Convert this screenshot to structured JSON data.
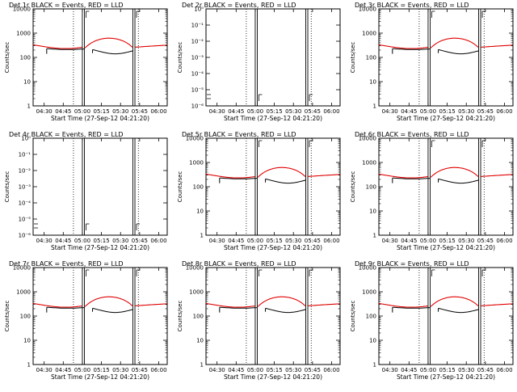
{
  "chart_data": [
    {
      "id": "det1",
      "type": "line",
      "title": "Det 1r BLACK = Events, RED = LLD",
      "ylabel": "Counts/sec",
      "xlabel": "Start Time (27-Sep-12 04:21:20)",
      "x_ticks": [
        "04:30",
        "04:45",
        "05:00",
        "05:15",
        "05:30",
        "05:45",
        "06:00"
      ],
      "y_scale": "log",
      "y_ticks": [
        "1",
        "10",
        "100",
        "1000",
        "10000"
      ],
      "ylim": [
        1,
        10000
      ],
      "has_data": true
    },
    {
      "id": "det2",
      "type": "line",
      "title": "Det 2r BLACK = Events, RED = LLD",
      "ylabel": "Counts/sec",
      "xlabel": "Start Time (27-Sep-12 04:21:20)",
      "x_ticks": [
        "04:30",
        "04:45",
        "05:00",
        "05:15",
        "05:30",
        "05:45",
        "06:00"
      ],
      "y_scale": "log",
      "y_ticks": [
        "10⁰",
        "10⁻¹",
        "10⁻²",
        "10⁻³",
        "10⁻⁴",
        "10⁻⁵",
        "10⁻⁶"
      ],
      "ylim": [
        1e-06,
        1
      ],
      "has_data": false
    },
    {
      "id": "det3",
      "type": "line",
      "title": "Det 3r BLACK = Events, RED = LLD",
      "ylabel": "Counts/sec",
      "xlabel": "Start Time (27-Sep-12 04:21:20)",
      "x_ticks": [
        "04:30",
        "04:45",
        "05:00",
        "05:15",
        "05:30",
        "05:45",
        "06:00"
      ],
      "y_scale": "log",
      "y_ticks": [
        "1",
        "10",
        "100",
        "1000",
        "10000"
      ],
      "ylim": [
        1,
        10000
      ],
      "has_data": true
    },
    {
      "id": "det4",
      "type": "line",
      "title": "Det 4r BLACK = Events, RED = LLD",
      "ylabel": "Counts/sec",
      "xlabel": "Start Time (27-Sep-12 04:21:20)",
      "x_ticks": [
        "04:30",
        "04:45",
        "05:00",
        "05:15",
        "05:30",
        "05:45",
        "06:00"
      ],
      "y_scale": "log",
      "y_ticks": [
        "10⁰",
        "10⁻¹",
        "10⁻²",
        "10⁻³",
        "10⁻⁴",
        "10⁻⁵",
        "10⁻⁶"
      ],
      "ylim": [
        1e-06,
        1
      ],
      "has_data": false
    },
    {
      "id": "det5",
      "type": "line",
      "title": "Det 5r BLACK = Events, RED = LLD",
      "ylabel": "Counts/sec",
      "xlabel": "Start Time (27-Sep-12 04:21:20)",
      "x_ticks": [
        "04:30",
        "04:45",
        "05:00",
        "05:15",
        "05:30",
        "05:45",
        "06:00"
      ],
      "y_scale": "log",
      "y_ticks": [
        "1",
        "10",
        "100",
        "1000",
        "10000"
      ],
      "ylim": [
        1,
        10000
      ],
      "has_data": true
    },
    {
      "id": "det6",
      "type": "line",
      "title": "Det 6r BLACK = Events, RED = LLD",
      "ylabel": "Counts/sec",
      "xlabel": "Start Time (27-Sep-12 04:21:20)",
      "x_ticks": [
        "04:30",
        "04:45",
        "05:00",
        "05:15",
        "05:30",
        "05:45",
        "06:00"
      ],
      "y_scale": "log",
      "y_ticks": [
        "1",
        "10",
        "100",
        "1000",
        "10000"
      ],
      "ylim": [
        1,
        10000
      ],
      "has_data": true
    },
    {
      "id": "det7",
      "type": "line",
      "title": "Det 7r BLACK = Events, RED = LLD",
      "ylabel": "Counts/sec",
      "xlabel": "Start Time (27-Sep-12 04:21:20)",
      "x_ticks": [
        "04:30",
        "04:45",
        "05:00",
        "05:15",
        "05:30",
        "05:45",
        "06:00"
      ],
      "y_scale": "log",
      "y_ticks": [
        "1",
        "10",
        "100",
        "1000",
        "10000"
      ],
      "ylim": [
        1,
        10000
      ],
      "has_data": true
    },
    {
      "id": "det8",
      "type": "line",
      "title": "Det 8r BLACK = Events, RED = LLD",
      "ylabel": "Counts/sec",
      "xlabel": "Start Time (27-Sep-12 04:21:20)",
      "x_ticks": [
        "04:30",
        "04:45",
        "05:00",
        "05:15",
        "05:30",
        "05:45",
        "06:00"
      ],
      "y_scale": "log",
      "y_ticks": [
        "1",
        "10",
        "100",
        "1000",
        "10000"
      ],
      "ylim": [
        1,
        10000
      ],
      "has_data": true
    },
    {
      "id": "det9",
      "type": "line",
      "title": "Det 9r BLACK = Events, RED = LLD",
      "ylabel": "Counts/sec",
      "xlabel": "Start Time (27-Sep-12 04:21:20)",
      "x_ticks": [
        "04:30",
        "04:45",
        "05:00",
        "05:15",
        "05:30",
        "05:45",
        "06:00"
      ],
      "y_scale": "log",
      "y_ticks": [
        "1",
        "10",
        "100",
        "1000",
        "10000"
      ],
      "ylim": [
        1,
        10000
      ],
      "has_data": true
    }
  ],
  "colors": {
    "events": "#000000",
    "lld": "#e00000",
    "frame": "#000000",
    "background": "#ffffff"
  }
}
